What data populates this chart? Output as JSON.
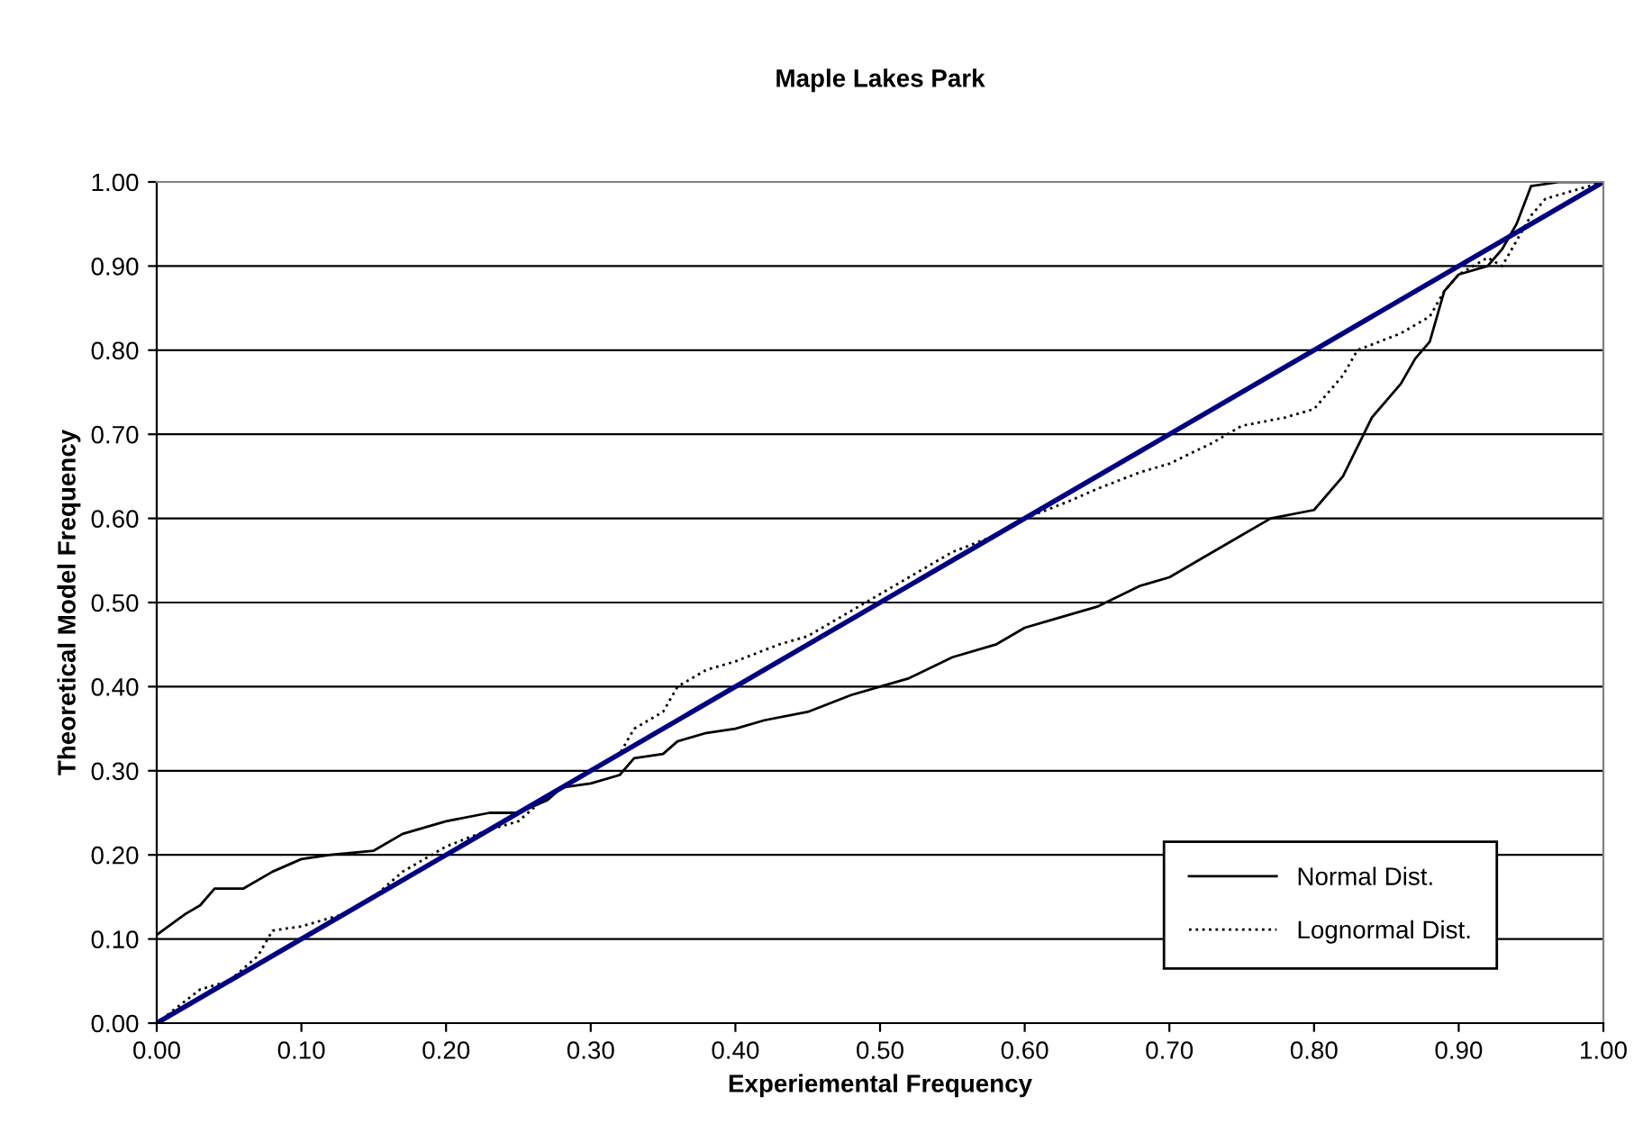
{
  "chart_data": {
    "type": "line",
    "title": "Maple Lakes Park",
    "xlabel": "Experiemental Frequency",
    "ylabel": "Theoretical Model Frequency",
    "xlim": [
      0,
      1
    ],
    "ylim": [
      0,
      1
    ],
    "xticks": [
      {
        "value": 0,
        "label": "0.00"
      },
      {
        "value": 0.1,
        "label": "0.10"
      },
      {
        "value": 0.2,
        "label": "0.20"
      },
      {
        "value": 0.3,
        "label": "0.30"
      },
      {
        "value": 0.4,
        "label": "0.40"
      },
      {
        "value": 0.5,
        "label": "0.50"
      },
      {
        "value": 0.6,
        "label": "0.60"
      },
      {
        "value": 0.7,
        "label": "0.70"
      },
      {
        "value": 0.8,
        "label": "0.80"
      },
      {
        "value": 0.9,
        "label": "0.90"
      },
      {
        "value": 1,
        "label": "1.00"
      }
    ],
    "yticks": [
      {
        "value": 0,
        "label": "0.00"
      },
      {
        "value": 0.1,
        "label": "0.10"
      },
      {
        "value": 0.2,
        "label": "0.20"
      },
      {
        "value": 0.3,
        "label": "0.30"
      },
      {
        "value": 0.4,
        "label": "0.40"
      },
      {
        "value": 0.5,
        "label": "0.50"
      },
      {
        "value": 0.6,
        "label": "0.60"
      },
      {
        "value": 0.7,
        "label": "0.70"
      },
      {
        "value": 0.8,
        "label": "0.80"
      },
      {
        "value": 0.9,
        "label": "0.90"
      },
      {
        "value": 1,
        "label": "1.00"
      }
    ],
    "grid": "y",
    "legend": "bottom right",
    "marker": "none",
    "series": [
      {
        "name": "Normal Dist.",
        "color": "#000000",
        "line_style": "solid",
        "x": [
          0.0,
          0.02,
          0.03,
          0.04,
          0.06,
          0.08,
          0.1,
          0.12,
          0.15,
          0.17,
          0.2,
          0.23,
          0.25,
          0.27,
          0.28,
          0.3,
          0.32,
          0.33,
          0.35,
          0.36,
          0.38,
          0.4,
          0.42,
          0.45,
          0.48,
          0.5,
          0.52,
          0.55,
          0.58,
          0.6,
          0.62,
          0.65,
          0.68,
          0.7,
          0.72,
          0.75,
          0.77,
          0.8,
          0.82,
          0.84,
          0.86,
          0.87,
          0.88,
          0.89,
          0.9,
          0.92,
          0.93,
          0.94,
          0.95,
          0.97,
          1.0
        ],
        "values": [
          0.105,
          0.13,
          0.14,
          0.16,
          0.16,
          0.18,
          0.195,
          0.2,
          0.205,
          0.225,
          0.24,
          0.25,
          0.25,
          0.265,
          0.28,
          0.285,
          0.295,
          0.315,
          0.32,
          0.335,
          0.345,
          0.35,
          0.36,
          0.37,
          0.39,
          0.4,
          0.41,
          0.435,
          0.45,
          0.47,
          0.48,
          0.495,
          0.52,
          0.53,
          0.55,
          0.58,
          0.6,
          0.61,
          0.65,
          0.72,
          0.76,
          0.79,
          0.81,
          0.87,
          0.89,
          0.9,
          0.92,
          0.95,
          0.995,
          1.0,
          1.0
        ]
      },
      {
        "name": "Lognormal Dist.",
        "color": "#000000",
        "line_style": "dotted",
        "x": [
          0.0,
          0.03,
          0.05,
          0.07,
          0.08,
          0.1,
          0.13,
          0.15,
          0.17,
          0.2,
          0.23,
          0.25,
          0.27,
          0.3,
          0.32,
          0.33,
          0.35,
          0.36,
          0.38,
          0.4,
          0.43,
          0.45,
          0.48,
          0.5,
          0.53,
          0.55,
          0.58,
          0.6,
          0.63,
          0.65,
          0.68,
          0.7,
          0.73,
          0.75,
          0.78,
          0.8,
          0.82,
          0.83,
          0.86,
          0.88,
          0.89,
          0.9,
          0.92,
          0.93,
          0.95,
          0.96,
          1.0
        ],
        "values": [
          0.0,
          0.04,
          0.05,
          0.08,
          0.11,
          0.115,
          0.13,
          0.15,
          0.18,
          0.21,
          0.23,
          0.24,
          0.27,
          0.3,
          0.32,
          0.35,
          0.37,
          0.4,
          0.42,
          0.43,
          0.45,
          0.46,
          0.49,
          0.51,
          0.54,
          0.56,
          0.58,
          0.6,
          0.62,
          0.635,
          0.655,
          0.665,
          0.69,
          0.71,
          0.72,
          0.73,
          0.77,
          0.8,
          0.82,
          0.84,
          0.87,
          0.89,
          0.91,
          0.9,
          0.96,
          0.98,
          1.0
        ]
      },
      {
        "color": "#000080",
        "line_style": "solid",
        "x": [
          0,
          1
        ],
        "values": [
          0,
          1
        ]
      }
    ]
  }
}
